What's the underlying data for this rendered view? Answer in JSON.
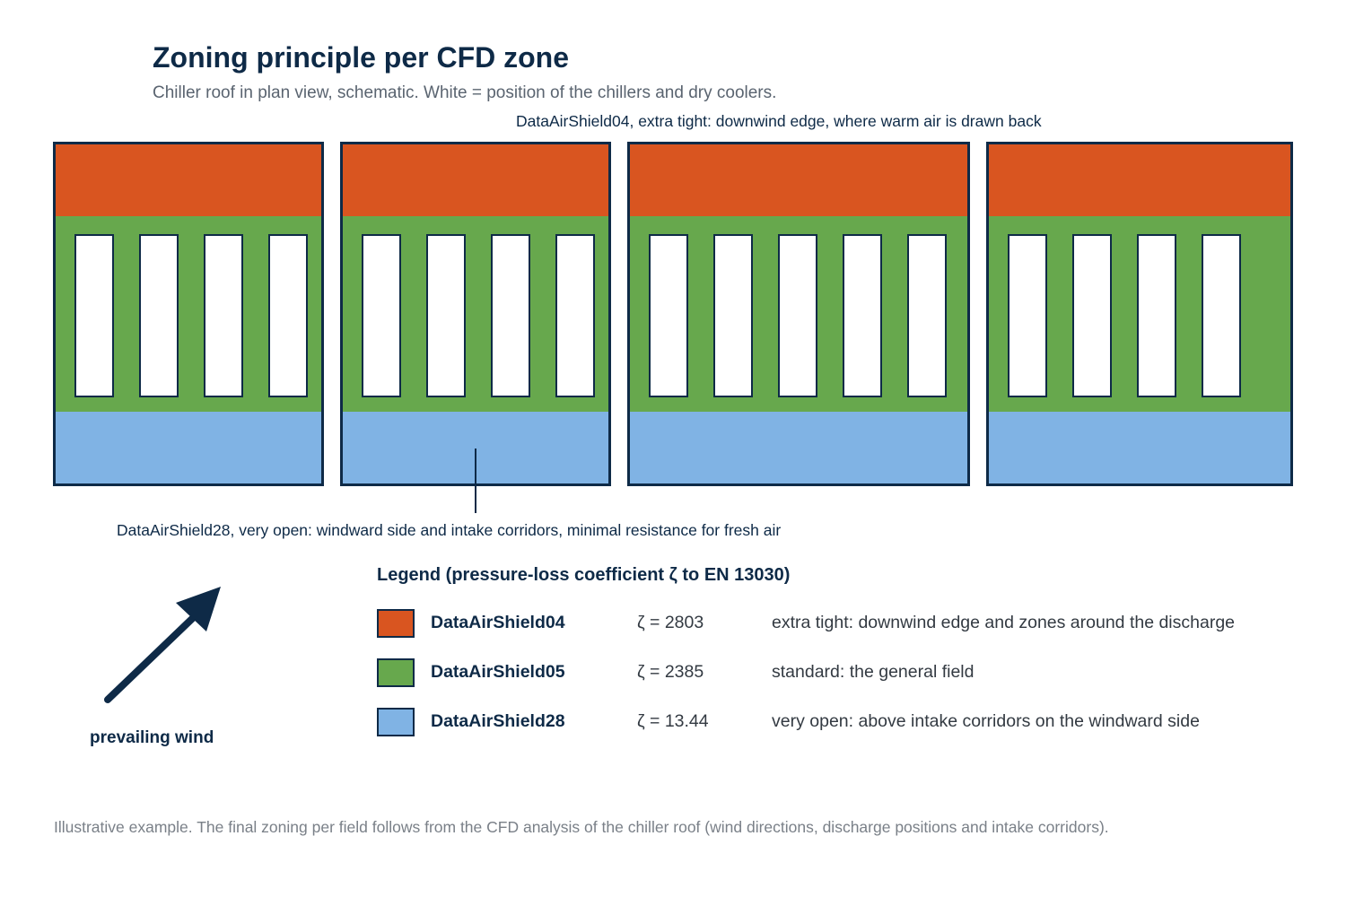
{
  "header": {
    "title": "Zoning principle per CFD zone",
    "subtitle": "Chiller roof in plan view, schematic. White = position of the chillers and dry coolers."
  },
  "annotations": {
    "top": "DataAirShield04, extra tight: downwind edge, where warm air is drawn back",
    "bottom": "DataAirShield28, very open: windward side and intake corridors, minimal resistance for fresh air"
  },
  "colors": {
    "extra_tight": "#d95520",
    "standard": "#67a84d",
    "very_open": "#80b3e4",
    "outline": "#0e2a47",
    "unit": "#ffffff"
  },
  "fields": [
    {
      "units": 4
    },
    {
      "units": 4
    },
    {
      "units": 5
    },
    {
      "units": 4
    }
  ],
  "legend": {
    "title": "Legend (pressure-loss coefficient ζ to EN 13030)",
    "items": [
      {
        "name": "DataAirShield04",
        "zeta": "ζ = 2803",
        "description": "extra tight: downwind edge and zones around the discharge",
        "color": "#d95520"
      },
      {
        "name": "DataAirShield05",
        "zeta": "ζ = 2385",
        "description": "standard: the general field",
        "color": "#67a84d"
      },
      {
        "name": "DataAirShield28",
        "zeta": "ζ = 13.44",
        "description": "very open: above intake corridors on the windward side",
        "color": "#80b3e4"
      }
    ]
  },
  "wind": {
    "label": "prevailing wind",
    "icon": "wind-direction-arrow-icon"
  },
  "footnote": "Illustrative example. The final zoning per field follows from the CFD analysis of the chiller roof (wind directions, discharge positions and intake corridors)."
}
